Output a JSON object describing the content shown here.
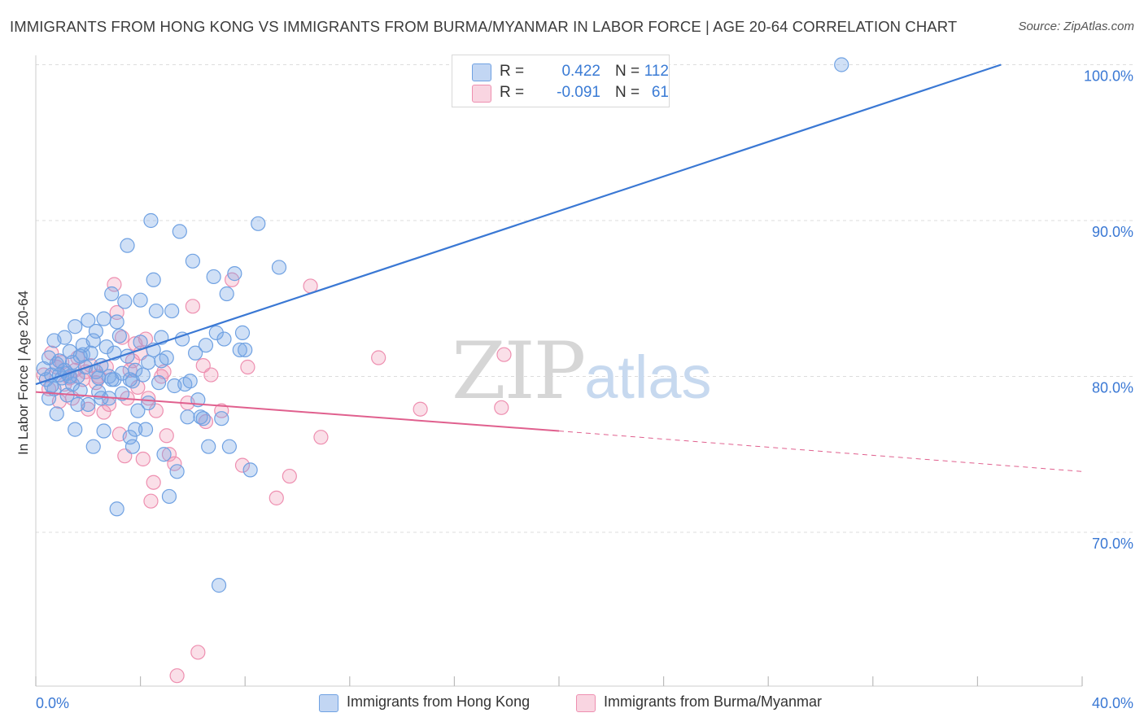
{
  "title": "IMMIGRANTS FROM HONG KONG VS IMMIGRANTS FROM BURMA/MYANMAR IN LABOR FORCE | AGE 20-64 CORRELATION CHART",
  "source": "Source: ZipAtlas.com",
  "watermark": {
    "zip": "ZIP",
    "atlas": "atlas"
  },
  "legend": {
    "rows": [
      {
        "r_label": "R =",
        "r_value": "0.422",
        "n_label": "N =",
        "n_value": "112"
      },
      {
        "r_label": "R =",
        "r_value": "-0.091",
        "n_label": "N =",
        "n_value": "61"
      }
    ]
  },
  "colors": {
    "blue": "#6fa1e2",
    "blue_fill": "rgba(120,165,228,0.35)",
    "blue_line": "#3a78d4",
    "pink": "#ee8fb0",
    "pink_fill": "rgba(240,150,180,0.30)",
    "pink_line": "#e0608e",
    "axis_text": "#3a78d4",
    "grid": "#dddddd"
  },
  "chart_data": {
    "type": "scatter",
    "title": "IMMIGRANTS FROM HONG KONG VS IMMIGRANTS FROM BURMA/MYANMAR IN LABOR FORCE | AGE 20-64 CORRELATION CHART",
    "xlabel": "",
    "ylabel": "In Labor Force | Age 20-64",
    "xlim": [
      0,
      40
    ],
    "ylim": [
      60,
      100
    ],
    "x_tick_labels": [
      "0.0%",
      "40.0%"
    ],
    "y_ticks": [
      70,
      80,
      90,
      100
    ],
    "y_tick_labels": [
      "70.0%",
      "80.0%",
      "90.0%",
      "100.0%"
    ],
    "grid": true,
    "legend_position": "top-center",
    "series": [
      {
        "name": "Immigrants from Hong Kong",
        "color": "#6fa1e2",
        "r": 0.422,
        "n": 112,
        "trend": {
          "x": [
            0,
            36.9
          ],
          "y": [
            79.5,
            100.0
          ],
          "dashed_to": null
        },
        "points": [
          [
            0.3,
            80.5
          ],
          [
            0.4,
            79.8
          ],
          [
            0.5,
            81.2
          ],
          [
            0.5,
            78.6
          ],
          [
            0.6,
            80.1
          ],
          [
            0.7,
            82.3
          ],
          [
            0.7,
            79.2
          ],
          [
            0.8,
            80.8
          ],
          [
            0.8,
            77.6
          ],
          [
            0.9,
            81.0
          ],
          [
            1.0,
            79.9
          ],
          [
            1.1,
            80.4
          ],
          [
            1.1,
            82.5
          ],
          [
            1.2,
            78.8
          ],
          [
            1.2,
            80.2
          ],
          [
            1.3,
            81.6
          ],
          [
            1.4,
            79.5
          ],
          [
            1.4,
            80.9
          ],
          [
            1.5,
            76.6
          ],
          [
            1.5,
            83.2
          ],
          [
            1.6,
            80.0
          ],
          [
            1.7,
            79.1
          ],
          [
            1.8,
            81.4
          ],
          [
            1.8,
            82.0
          ],
          [
            1.9,
            80.6
          ],
          [
            2.0,
            83.6
          ],
          [
            2.0,
            78.2
          ],
          [
            2.1,
            81.5
          ],
          [
            2.2,
            75.5
          ],
          [
            2.3,
            80.3
          ],
          [
            2.3,
            82.9
          ],
          [
            2.4,
            79.0
          ],
          [
            2.5,
            80.7
          ],
          [
            2.6,
            83.7
          ],
          [
            2.6,
            76.5
          ],
          [
            2.7,
            81.9
          ],
          [
            2.8,
            80.0
          ],
          [
            2.8,
            78.6
          ],
          [
            2.9,
            85.3
          ],
          [
            3.0,
            81.5
          ],
          [
            3.0,
            79.8
          ],
          [
            3.1,
            71.5
          ],
          [
            3.2,
            82.6
          ],
          [
            3.3,
            80.2
          ],
          [
            3.3,
            78.9
          ],
          [
            3.4,
            84.8
          ],
          [
            3.5,
            88.4
          ],
          [
            3.5,
            81.3
          ],
          [
            3.6,
            76.1
          ],
          [
            3.7,
            79.7
          ],
          [
            3.7,
            75.5
          ],
          [
            3.8,
            80.4
          ],
          [
            3.9,
            77.8
          ],
          [
            4.0,
            82.2
          ],
          [
            4.0,
            84.9
          ],
          [
            4.1,
            80.1
          ],
          [
            4.2,
            76.6
          ],
          [
            4.3,
            78.3
          ],
          [
            4.4,
            90.0
          ],
          [
            4.5,
            86.2
          ],
          [
            4.5,
            81.7
          ],
          [
            4.6,
            84.2
          ],
          [
            4.7,
            79.6
          ],
          [
            4.8,
            82.5
          ],
          [
            4.9,
            75.0
          ],
          [
            5.0,
            81.2
          ],
          [
            5.1,
            72.3
          ],
          [
            5.2,
            84.2
          ],
          [
            5.3,
            79.4
          ],
          [
            5.4,
            73.9
          ],
          [
            5.5,
            89.3
          ],
          [
            5.6,
            82.4
          ],
          [
            5.7,
            79.5
          ],
          [
            5.8,
            77.4
          ],
          [
            6.0,
            87.4
          ],
          [
            6.1,
            81.5
          ],
          [
            6.2,
            78.5
          ],
          [
            6.3,
            77.4
          ],
          [
            6.4,
            77.3
          ],
          [
            6.5,
            82.0
          ],
          [
            6.6,
            75.5
          ],
          [
            6.8,
            86.4
          ],
          [
            6.9,
            82.8
          ],
          [
            7.0,
            66.6
          ],
          [
            7.1,
            77.3
          ],
          [
            7.2,
            82.4
          ],
          [
            7.3,
            85.3
          ],
          [
            7.4,
            75.5
          ],
          [
            7.6,
            86.6
          ],
          [
            7.8,
            81.7
          ],
          [
            7.9,
            82.8
          ],
          [
            8.0,
            81.7
          ],
          [
            8.2,
            74.0
          ],
          [
            8.5,
            89.8
          ],
          [
            9.3,
            87.0
          ],
          [
            30.8,
            100.0
          ],
          [
            1.6,
            78.2
          ],
          [
            2.4,
            79.9
          ],
          [
            3.1,
            83.5
          ],
          [
            3.6,
            79.8
          ],
          [
            4.3,
            80.9
          ],
          [
            1.3,
            80.0
          ],
          [
            2.5,
            78.6
          ],
          [
            0.9,
            80.1
          ],
          [
            1.7,
            81.3
          ],
          [
            2.9,
            79.8
          ],
          [
            4.8,
            81.0
          ],
          [
            5.9,
            79.7
          ],
          [
            3.8,
            76.6
          ],
          [
            2.2,
            82.3
          ],
          [
            0.6,
            79.4
          ]
        ]
      },
      {
        "name": "Immigrants from Burma/Myanmar",
        "color": "#ee8fb0",
        "r": -0.091,
        "n": 61,
        "trend": {
          "x": [
            0,
            20.0
          ],
          "y": [
            79.0,
            76.5
          ],
          "dashed_to": {
            "x": 40.0,
            "y": 73.9
          }
        },
        "points": [
          [
            0.3,
            80.1
          ],
          [
            0.5,
            79.2
          ],
          [
            0.6,
            81.5
          ],
          [
            0.8,
            80.6
          ],
          [
            0.9,
            78.4
          ],
          [
            1.0,
            80.9
          ],
          [
            1.1,
            79.5
          ],
          [
            1.3,
            79.9
          ],
          [
            1.4,
            78.6
          ],
          [
            1.5,
            80.4
          ],
          [
            1.6,
            81.2
          ],
          [
            1.8,
            79.8
          ],
          [
            1.9,
            80.3
          ],
          [
            2.0,
            77.9
          ],
          [
            2.1,
            80.7
          ],
          [
            2.3,
            79.6
          ],
          [
            2.4,
            80.0
          ],
          [
            2.6,
            77.7
          ],
          [
            2.7,
            80.6
          ],
          [
            2.8,
            78.2
          ],
          [
            3.0,
            85.9
          ],
          [
            3.1,
            84.1
          ],
          [
            3.2,
            76.3
          ],
          [
            3.3,
            82.5
          ],
          [
            3.4,
            74.9
          ],
          [
            3.5,
            78.6
          ],
          [
            3.6,
            80.4
          ],
          [
            3.8,
            82.1
          ],
          [
            3.9,
            79.3
          ],
          [
            4.0,
            81.5
          ],
          [
            4.1,
            74.7
          ],
          [
            4.2,
            82.4
          ],
          [
            4.3,
            78.6
          ],
          [
            4.4,
            72.0
          ],
          [
            4.5,
            73.2
          ],
          [
            4.6,
            77.8
          ],
          [
            4.8,
            80.0
          ],
          [
            4.9,
            80.3
          ],
          [
            5.0,
            76.2
          ],
          [
            5.1,
            75.0
          ],
          [
            5.3,
            74.4
          ],
          [
            5.4,
            60.8
          ],
          [
            5.8,
            78.3
          ],
          [
            6.0,
            84.5
          ],
          [
            6.2,
            62.3
          ],
          [
            6.4,
            80.7
          ],
          [
            6.5,
            77.1
          ],
          [
            6.7,
            80.1
          ],
          [
            7.1,
            77.8
          ],
          [
            7.5,
            86.2
          ],
          [
            7.9,
            74.3
          ],
          [
            8.1,
            80.6
          ],
          [
            9.2,
            72.2
          ],
          [
            9.7,
            73.6
          ],
          [
            10.5,
            85.8
          ],
          [
            10.9,
            76.1
          ],
          [
            13.1,
            81.2
          ],
          [
            14.7,
            77.9
          ],
          [
            17.9,
            81.4
          ],
          [
            17.8,
            78.0
          ],
          [
            3.7,
            81.0
          ]
        ]
      }
    ]
  },
  "bottom_legend": [
    "Immigrants from Hong Kong",
    "Immigrants from Burma/Myanmar"
  ]
}
